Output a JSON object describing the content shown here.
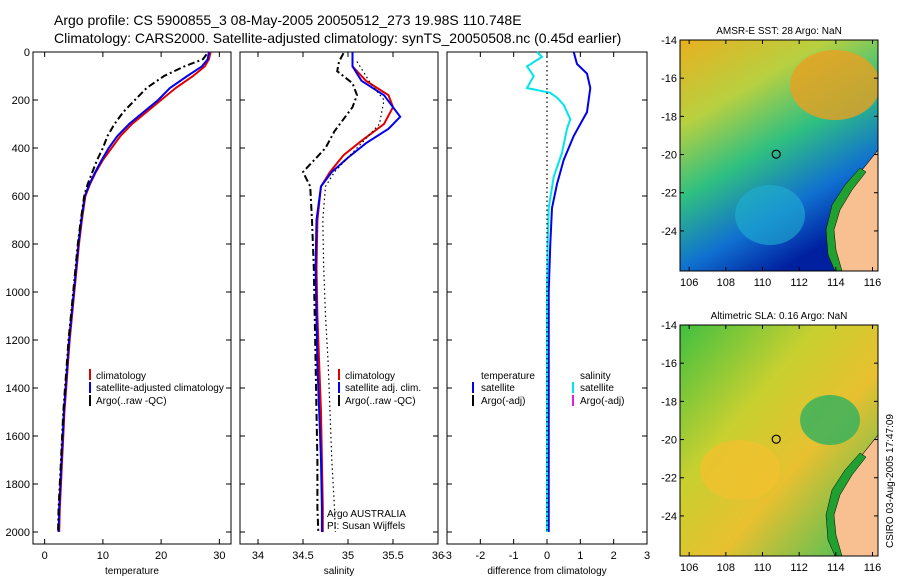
{
  "title": {
    "line1": "Argo profile: CS 5900855_3 08-May-2005 20050512_273 19.98S 110.748E",
    "line2": "Climatology: CARS2000. Satellite-adjusted climatology: synTS_20050508.nc (0.45d earlier)"
  },
  "side_label": "CSIRO 03-Aug-2005 17:47:09",
  "chart_data": [
    {
      "id": "temperature",
      "type": "line",
      "xlabel": "temperature",
      "xlim": [
        -2,
        32
      ],
      "xticks": [
        0,
        10,
        20,
        30
      ],
      "ylim": [
        2050,
        0
      ],
      "yticks": [
        0,
        200,
        400,
        600,
        800,
        1000,
        1200,
        1400,
        1600,
        1800,
        2000
      ],
      "legend": [
        "climatology",
        "satellite-adjusted climatology",
        "Argo(..raw -QC)"
      ],
      "series": [
        {
          "name": "climatology",
          "color": "#e00000",
          "style": "solid",
          "points": [
            [
              28.5,
              0
            ],
            [
              28.2,
              30
            ],
            [
              27.5,
              60
            ],
            [
              25.5,
              100
            ],
            [
              22.5,
              150
            ],
            [
              20,
              200
            ],
            [
              17.5,
              250
            ],
            [
              15,
              300
            ],
            [
              13,
              350
            ],
            [
              11.5,
              400
            ],
            [
              10,
              450
            ],
            [
              8.8,
              500
            ],
            [
              7.8,
              550
            ],
            [
              7,
              600
            ],
            [
              6.4,
              700
            ],
            [
              5.9,
              800
            ],
            [
              5.5,
              900
            ],
            [
              5.1,
              1000
            ],
            [
              4.7,
              1100
            ],
            [
              4.3,
              1200
            ],
            [
              4,
              1300
            ],
            [
              3.7,
              1400
            ],
            [
              3.4,
              1500
            ],
            [
              3.2,
              1600
            ],
            [
              3,
              1700
            ],
            [
              2.8,
              1800
            ],
            [
              2.6,
              1900
            ],
            [
              2.5,
              2000
            ]
          ]
        },
        {
          "name": "satellite-adjusted climatology",
          "color": "#0000ee",
          "style": "solid",
          "points": [
            [
              28.2,
              0
            ],
            [
              28,
              30
            ],
            [
              27,
              60
            ],
            [
              24.5,
              100
            ],
            [
              21.5,
              150
            ],
            [
              19.5,
              200
            ],
            [
              17,
              250
            ],
            [
              14.5,
              300
            ],
            [
              12.5,
              350
            ],
            [
              11,
              400
            ],
            [
              9.8,
              450
            ],
            [
              8.7,
              500
            ],
            [
              7.7,
              550
            ],
            [
              6.9,
              600
            ],
            [
              6.3,
              700
            ],
            [
              5.8,
              800
            ],
            [
              5.4,
              900
            ],
            [
              5,
              1000
            ],
            [
              4.6,
              1100
            ],
            [
              4.2,
              1200
            ],
            [
              3.9,
              1300
            ],
            [
              3.6,
              1400
            ],
            [
              3.3,
              1500
            ],
            [
              3.1,
              1600
            ],
            [
              2.9,
              1700
            ],
            [
              2.7,
              1800
            ],
            [
              2.5,
              1900
            ],
            [
              2.4,
              2000
            ]
          ]
        },
        {
          "name": "Argo(..raw -QC)",
          "color": "#000000",
          "style": "dashdot",
          "points": [
            [
              27.8,
              10
            ],
            [
              27.2,
              30
            ],
            [
              24,
              60
            ],
            [
              20.5,
              100
            ],
            [
              17.5,
              150
            ],
            [
              15.5,
              200
            ],
            [
              13.5,
              250
            ],
            [
              12,
              300
            ],
            [
              10.8,
              350
            ],
            [
              10,
              400
            ],
            [
              9,
              450
            ],
            [
              8.2,
              500
            ],
            [
              7.4,
              550
            ],
            [
              6.8,
              600
            ],
            [
              6.2,
              700
            ],
            [
              5.7,
              800
            ],
            [
              5.3,
              900
            ],
            [
              4.9,
              1000
            ],
            [
              4.5,
              1100
            ],
            [
              4.1,
              1200
            ],
            [
              3.8,
              1300
            ],
            [
              3.5,
              1400
            ],
            [
              3.2,
              1500
            ],
            [
              3,
              1600
            ],
            [
              2.8,
              1700
            ],
            [
              2.6,
              1800
            ],
            [
              2.4,
              1900
            ],
            [
              2.3,
              2005
            ]
          ]
        }
      ]
    },
    {
      "id": "salinity",
      "type": "line",
      "xlabel": "salinity",
      "xlim": [
        33.8,
        36.0
      ],
      "xticks": [
        34,
        34.5,
        35,
        35.5,
        36
      ],
      "ylim": [
        2050,
        0
      ],
      "legend": [
        "climatology",
        "satellite adj. clim.",
        "Argo(..raw -QC)"
      ],
      "annotation": [
        "Argo AUSTRALIA",
        "PI: Susan Wijffels"
      ],
      "series": [
        {
          "name": "climatology",
          "color": "#e00000",
          "style": "solid",
          "points": [
            [
              35.05,
              0
            ],
            [
              35.05,
              60
            ],
            [
              35.2,
              120
            ],
            [
              35.45,
              180
            ],
            [
              35.5,
              230
            ],
            [
              35.4,
              300
            ],
            [
              35.15,
              370
            ],
            [
              34.95,
              430
            ],
            [
              34.8,
              500
            ],
            [
              34.7,
              560
            ],
            [
              34.66,
              700
            ],
            [
              34.65,
              900
            ],
            [
              34.66,
              1100
            ],
            [
              34.68,
              1300
            ],
            [
              34.7,
              1500
            ],
            [
              34.71,
              1700
            ],
            [
              34.72,
              1900
            ],
            [
              34.72,
              2000
            ]
          ]
        },
        {
          "name": "satellite adj. clim.",
          "color": "#0000ee",
          "style": "solid",
          "points": [
            [
              35.05,
              0
            ],
            [
              35.05,
              60
            ],
            [
              35.15,
              120
            ],
            [
              35.4,
              180
            ],
            [
              35.58,
              270
            ],
            [
              35.45,
              320
            ],
            [
              35.2,
              380
            ],
            [
              35,
              440
            ],
            [
              34.82,
              500
            ],
            [
              34.7,
              560
            ],
            [
              34.65,
              700
            ],
            [
              34.64,
              900
            ],
            [
              34.65,
              1100
            ],
            [
              34.66,
              1300
            ],
            [
              34.68,
              1500
            ],
            [
              34.7,
              1700
            ],
            [
              34.71,
              1900
            ],
            [
              34.71,
              2000
            ]
          ]
        },
        {
          "name": "Argo(..raw -QC)",
          "color": "#000000",
          "style": "dashdot",
          "points": [
            [
              34.95,
              5
            ],
            [
              34.9,
              40
            ],
            [
              34.88,
              80
            ],
            [
              35.05,
              130
            ],
            [
              35.1,
              180
            ],
            [
              35.05,
              230
            ],
            [
              34.95,
              280
            ],
            [
              34.85,
              330
            ],
            [
              34.75,
              400
            ],
            [
              34.6,
              460
            ],
            [
              34.5,
              500
            ],
            [
              34.58,
              560
            ],
            [
              34.6,
              700
            ],
            [
              34.62,
              900
            ],
            [
              34.63,
              1100
            ],
            [
              34.64,
              1300
            ],
            [
              34.65,
              1500
            ],
            [
              34.66,
              1700
            ],
            [
              34.66,
              1900
            ],
            [
              34.67,
              2000
            ]
          ]
        },
        {
          "name": "",
          "color": "#000000",
          "style": "dotted",
          "points": [
            [
              35.1,
              40
            ],
            [
              35.25,
              130
            ],
            [
              35.4,
              200
            ],
            [
              35.35,
              300
            ],
            [
              35.15,
              380
            ],
            [
              35,
              440
            ],
            [
              34.85,
              500
            ],
            [
              34.75,
              560
            ],
            [
              34.72,
              700
            ],
            [
              34.73,
              900
            ],
            [
              34.75,
              1100
            ],
            [
              34.78,
              1300
            ],
            [
              34.8,
              1500
            ],
            [
              34.82,
              1700
            ],
            [
              34.85,
              1900
            ],
            [
              34.86,
              2000
            ]
          ]
        }
      ]
    },
    {
      "id": "difference",
      "type": "line",
      "xlabel": "difference from climatology",
      "xlim": [
        -3,
        3
      ],
      "xticks": [
        -3,
        -2,
        -1,
        0,
        1,
        2,
        3
      ],
      "ylim": [
        2050,
        0
      ],
      "legend_left": [
        "temperature",
        "satellite",
        "Argo(-adj)"
      ],
      "legend_right": [
        "salinity",
        "satellite",
        "Argo(-adj)"
      ],
      "series": [
        {
          "name": "temperature satellite",
          "color": "#0000ee",
          "style": "solid",
          "points": [
            [
              0.8,
              0
            ],
            [
              0.9,
              50
            ],
            [
              1.2,
              90
            ],
            [
              1.3,
              150
            ],
            [
              1.2,
              250
            ],
            [
              0.8,
              350
            ],
            [
              0.5,
              450
            ],
            [
              0.3,
              550
            ],
            [
              0.15,
              650
            ],
            [
              0.1,
              800
            ],
            [
              0.05,
              1000
            ],
            [
              0.05,
              1400
            ],
            [
              0.05,
              2000
            ]
          ]
        },
        {
          "name": "salinity satellite",
          "color": "#00e5ee",
          "style": "solid",
          "points": [
            [
              -0.3,
              0
            ],
            [
              -0.15,
              20
            ],
            [
              -0.6,
              60
            ],
            [
              -0.4,
              100
            ],
            [
              -0.6,
              150
            ],
            [
              0.1,
              170
            ],
            [
              0.3,
              190
            ],
            [
              0.5,
              220
            ],
            [
              0.7,
              280
            ],
            [
              0.6,
              320
            ],
            [
              0.45,
              420
            ],
            [
              0.2,
              520
            ],
            [
              0.05,
              650
            ],
            [
              0.02,
              800
            ],
            [
              0,
              1000
            ],
            [
              0,
              1400
            ],
            [
              0,
              2000
            ]
          ]
        },
        {
          "name": "zero",
          "color": "#000000",
          "style": "dotted",
          "points": [
            [
              0,
              0
            ],
            [
              0,
              2000
            ]
          ]
        }
      ]
    }
  ],
  "maps": [
    {
      "id": "sst-map",
      "title": "AMSR-E SST: 28 Argo: NaN",
      "xticks": [
        106,
        108,
        110,
        112,
        114,
        116
      ],
      "yticks": [
        -14,
        -16,
        -18,
        -20,
        -22,
        -24
      ],
      "xlim": [
        105.5,
        116.3
      ],
      "ylim": [
        -26.1,
        -14
      ],
      "float_position": [
        110.748,
        -19.98
      ]
    },
    {
      "id": "sla-map",
      "title": "Altimetric SLA: 0.16 Argo: NaN",
      "xticks": [
        106,
        108,
        110,
        112,
        114,
        116
      ],
      "yticks": [
        -14,
        -16,
        -18,
        -20,
        -22,
        -24
      ],
      "xlim": [
        105.5,
        116.3
      ],
      "ylim": [
        -26.1,
        -14
      ],
      "float_position": [
        110.748,
        -19.98
      ]
    }
  ]
}
